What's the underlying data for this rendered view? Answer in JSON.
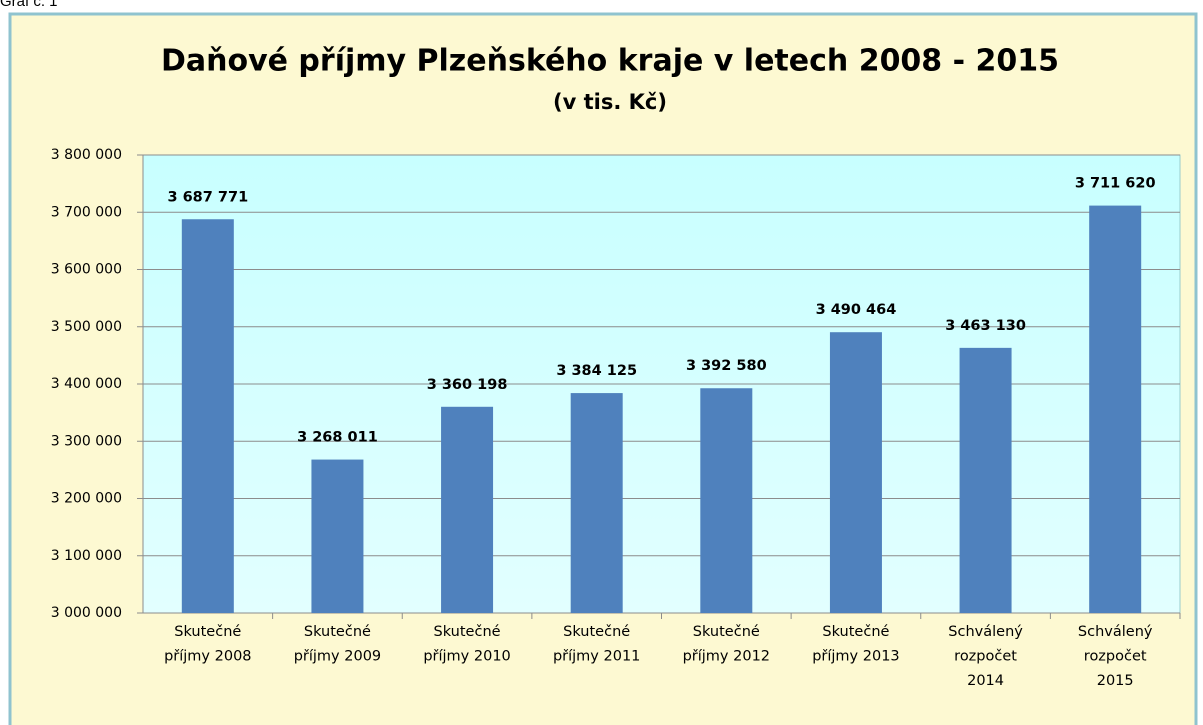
{
  "caption": "Graf č. 1",
  "chart_data": {
    "type": "bar",
    "title": "Daňové příjmy Plzeňského kraje v letech 2008 - 2015",
    "subtitle": "(v tis. Kč)",
    "categories": [
      [
        "Skutečné",
        "příjmy 2008"
      ],
      [
        "Skutečné",
        "příjmy 2009"
      ],
      [
        "Skutečné",
        "příjmy 2010"
      ],
      [
        "Skutečné",
        "příjmy 2011"
      ],
      [
        "Skutečné",
        "příjmy 2012"
      ],
      [
        "Skutečné",
        "příjmy 2013"
      ],
      [
        "Schválený",
        "rozpočet",
        "2014"
      ],
      [
        "Schválený",
        "rozpočet",
        "2015"
      ]
    ],
    "values": [
      3687771,
      3268011,
      3360198,
      3384125,
      3392580,
      3490464,
      3463130,
      3711620
    ],
    "value_labels": [
      "3 687 771",
      "3 268 011",
      "3 360 198",
      "3 384 125",
      "3 392 580",
      "3 490 464",
      "3 463 130",
      "3 711 620"
    ],
    "color": "#4f81bd",
    "ylim": [
      3000000,
      3800000
    ],
    "yticks": [
      {
        "value": 3000000,
        "label": "3 000 000"
      },
      {
        "value": 3100000,
        "label": "3 100 000"
      },
      {
        "value": 3200000,
        "label": "3 200 000"
      },
      {
        "value": 3300000,
        "label": "3 300 000"
      },
      {
        "value": 3400000,
        "label": "3 400 000"
      },
      {
        "value": 3500000,
        "label": "3 500 000"
      },
      {
        "value": 3600000,
        "label": "3 600 000"
      },
      {
        "value": 3700000,
        "label": "3 700 000"
      },
      {
        "value": 3800000,
        "label": "3 800 000"
      }
    ],
    "grid": true
  }
}
